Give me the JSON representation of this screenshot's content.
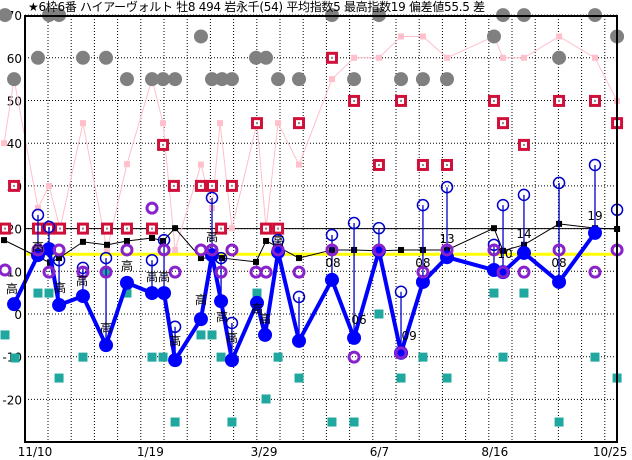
{
  "chart_data": {
    "type": "line",
    "title": "★6枠6番 ハイアーヴォルト 牡8 494 岩永千(54) 平均指数5 最高指数19 偏差値55.5 差",
    "x_unit": "days since 11/10",
    "xlim": [
      -21,
      353
    ],
    "ylim": [
      -30,
      70
    ],
    "grid": true,
    "x_ticks": [
      {
        "label": "11/10",
        "day": 0
      },
      {
        "label": "1/19",
        "day": 70
      },
      {
        "label": "3/29",
        "day": 139
      },
      {
        "label": "6/7",
        "day": 209
      },
      {
        "label": "8/16",
        "day": 279
      },
      {
        "label": "10/25",
        "day": 349
      }
    ],
    "y_ticks": [
      {
        "label": "70",
        "v": 70
      },
      {
        "label": "60",
        "v": 60
      },
      {
        "label": "50",
        "v": 50
      },
      {
        "label": "40",
        "v": 40
      },
      {
        "label": "30",
        "v": 30
      },
      {
        "label": "20",
        "v": 20
      },
      {
        "label": "10",
        "v": 10
      },
      {
        "label": "0",
        "v": 0
      },
      {
        "label": "-10",
        "v": -10
      },
      {
        "label": "-20",
        "v": -20
      }
    ],
    "reference_lines": [
      {
        "v": 20,
        "color": "#000000"
      },
      {
        "v": 14,
        "color": "#ffff00"
      }
    ],
    "colors": {
      "main": "#0000ff",
      "max": "#0000cc",
      "purple": "#8822cc",
      "black": "#000000",
      "red": "#d0103a",
      "pink": "#ffc0cb",
      "gray": "#808080",
      "teal": "#20a8a0"
    },
    "main": [
      {
        "d": -12.7,
        "v": 2.3
      },
      {
        "d": 1.8,
        "v": 13.8,
        "max": 23.2
      },
      {
        "d": 8.5,
        "v": 15.2,
        "max": 20.4
      },
      {
        "d": 14.6,
        "v": 2.1,
        "max": 12.6
      },
      {
        "d": 29.1,
        "v": 4.2,
        "max": 10.8
      },
      {
        "d": 43.1,
        "v": -7.3,
        "max": 13.1
      },
      {
        "d": 55.8,
        "v": 7.3
      },
      {
        "d": 71,
        "v": 4.9,
        "max": 12.6
      },
      {
        "d": 78.3,
        "v": 4.9,
        "max": 17.3
      },
      {
        "d": 85,
        "v": -10.8,
        "max": -3
      },
      {
        "d": 100.7,
        "v": -1.2
      },
      {
        "d": 107.4,
        "v": 13.8,
        "max": 27.2
      },
      {
        "d": 112.9,
        "v": 3.0,
        "max": 13.1
      },
      {
        "d": 119.5,
        "v": -10.8,
        "max": -2.1
      },
      {
        "d": 134.7,
        "v": 2.6
      },
      {
        "d": 139.6,
        "v": -4.9
      },
      {
        "d": 147.5,
        "v": 14.5,
        "max": 17.3
      },
      {
        "d": 160.2,
        "v": -6.3,
        "max": 4
      },
      {
        "d": 180.2,
        "v": 8.0,
        "max": 18.5
      },
      {
        "d": 193.6,
        "v": -5.6,
        "max": 21.3
      },
      {
        "d": 208.7,
        "v": 14.8,
        "max": 20.1
      },
      {
        "d": 222.1,
        "v": -9.1,
        "max": 5.2
      },
      {
        "d": 235.4,
        "v": 7.5,
        "max": 25.5
      },
      {
        "d": 250,
        "v": 13.3,
        "max": 29.7
      },
      {
        "d": 278.5,
        "v": 10.3,
        "max": 16.2
      },
      {
        "d": 284,
        "v": 9.8,
        "max": 25.5
      },
      {
        "d": 296.7,
        "v": 14.3,
        "max": 27.9
      },
      {
        "d": 318,
        "v": 7.5,
        "max": 30.7
      },
      {
        "d": 339.8,
        "v": 19.0,
        "max": 34.9
      }
    ],
    "extra_max": [
      {
        "d": 353.2,
        "v": 24.4,
        "to": 15
      }
    ],
    "purple": [
      [
        -18.2,
        10.3
      ],
      [
        1.8,
        15
      ],
      [
        8.5,
        9.8
      ],
      [
        14.6,
        15
      ],
      [
        29.1,
        9.8
      ],
      [
        43.1,
        9.8
      ],
      [
        55.8,
        15
      ],
      [
        71,
        24.8
      ],
      [
        78.3,
        15
      ],
      [
        85,
        9.8
      ],
      [
        100.7,
        15
      ],
      [
        107.4,
        15
      ],
      [
        112.9,
        9.8
      ],
      [
        119.5,
        15
      ],
      [
        134.1,
        9.8
      ],
      [
        140.2,
        9.8
      ],
      [
        147.5,
        15
      ],
      [
        160.2,
        9.8
      ],
      [
        180.2,
        15
      ],
      [
        193.6,
        -10.1
      ],
      [
        208.7,
        15
      ],
      [
        222.1,
        -9.1
      ],
      [
        235.4,
        9.8
      ],
      [
        250,
        15
      ],
      [
        278.5,
        15
      ],
      [
        284,
        9.8
      ],
      [
        296.7,
        9.8
      ],
      [
        318,
        15
      ],
      [
        339.8,
        9.8
      ],
      [
        353.2,
        15
      ]
    ],
    "black": [
      [
        -18.8,
        17.3
      ],
      [
        9.1,
        12
      ],
      [
        14.6,
        13.1
      ],
      [
        29.1,
        16.9
      ],
      [
        43.7,
        16.2
      ],
      [
        55.8,
        17.1
      ],
      [
        71,
        17.8
      ],
      [
        77.7,
        17.1
      ],
      [
        85,
        20.1
      ],
      [
        100.7,
        13.1
      ],
      [
        107.4,
        13.1
      ],
      [
        113.5,
        13.1
      ],
      [
        134.1,
        12.2
      ],
      [
        140.2,
        17.1
      ],
      [
        147.5,
        15.7
      ],
      [
        160.2,
        13.1
      ],
      [
        180.2,
        15
      ],
      [
        193.6,
        15
      ],
      [
        208.7,
        14.8
      ],
      [
        222.1,
        15
      ],
      [
        235.4,
        15
      ],
      [
        250,
        15
      ],
      [
        278.5,
        20.1
      ],
      [
        284,
        14.8
      ],
      [
        296.7,
        16.2
      ],
      [
        318,
        21.1
      ],
      [
        339.8,
        20.1
      ],
      [
        353.2,
        19.9
      ]
    ],
    "red": [
      [
        -18.2,
        20
      ],
      [
        -12.7,
        30
      ],
      [
        1.8,
        20
      ],
      [
        8.5,
        20
      ],
      [
        15.2,
        20
      ],
      [
        29.1,
        20
      ],
      [
        43.7,
        20
      ],
      [
        55.8,
        20
      ],
      [
        71,
        20
      ],
      [
        77.7,
        39.6
      ],
      [
        84.3,
        30
      ],
      [
        100.7,
        30
      ],
      [
        107.4,
        30
      ],
      [
        112.9,
        20
      ],
      [
        119.5,
        30
      ],
      [
        134.7,
        44.7
      ],
      [
        140.2,
        20
      ],
      [
        147.5,
        20
      ],
      [
        160.2,
        44.7
      ],
      [
        180.2,
        60
      ],
      [
        193.6,
        49.9
      ],
      [
        208.7,
        34.9
      ],
      [
        222.1,
        49.9
      ],
      [
        235.4,
        34.9
      ],
      [
        250,
        34.9
      ],
      [
        278.5,
        49.9
      ],
      [
        284,
        44.7
      ],
      [
        296.7,
        39.6
      ],
      [
        318,
        49.9
      ],
      [
        339.8,
        49.9
      ],
      [
        353.2,
        44.7
      ]
    ],
    "pink": [
      [
        -18.8,
        40
      ],
      [
        -12.7,
        55
      ],
      [
        1.8,
        24.8
      ],
      [
        8.5,
        30
      ],
      [
        15.2,
        20
      ],
      [
        29.1,
        44.7
      ],
      [
        43.7,
        15
      ],
      [
        55.8,
        35.1
      ],
      [
        71,
        55
      ],
      [
        77.7,
        44.7
      ],
      [
        85,
        15
      ],
      [
        100.7,
        35
      ],
      [
        107.4,
        24.8
      ],
      [
        112.3,
        44.7
      ],
      [
        119.5,
        20.1
      ],
      [
        134.7,
        44.7
      ],
      [
        140.2,
        20
      ],
      [
        147.5,
        44.7
      ],
      [
        160.2,
        35
      ],
      [
        180.2,
        55
      ],
      [
        193.6,
        60
      ],
      [
        208.7,
        60
      ],
      [
        222.1,
        65
      ],
      [
        235.4,
        65
      ],
      [
        250,
        60
      ],
      [
        278.5,
        65
      ],
      [
        284,
        60
      ],
      [
        296.7,
        60
      ],
      [
        318,
        65
      ],
      [
        339.8,
        60
      ],
      [
        353.2,
        49.9
      ]
    ],
    "gray": [
      [
        -18.2,
        70
      ],
      [
        -12.7,
        55
      ],
      [
        1.8,
        60
      ],
      [
        8.5,
        70
      ],
      [
        14.6,
        70
      ],
      [
        29.1,
        60
      ],
      [
        43.1,
        60
      ],
      [
        55.8,
        55
      ],
      [
        71,
        55
      ],
      [
        77.7,
        55
      ],
      [
        85,
        55
      ],
      [
        100.7,
        65
      ],
      [
        107.4,
        55
      ],
      [
        113.5,
        55
      ],
      [
        119.5,
        55
      ],
      [
        134.1,
        60
      ],
      [
        140.2,
        60
      ],
      [
        147.5,
        55
      ],
      [
        160.2,
        55
      ],
      [
        180.2,
        70
      ],
      [
        193.6,
        55
      ],
      [
        208.7,
        70
      ],
      [
        222.1,
        55
      ],
      [
        235.4,
        55
      ],
      [
        250,
        55
      ],
      [
        278.5,
        65
      ],
      [
        284,
        70
      ],
      [
        296.7,
        70
      ],
      [
        318,
        60
      ],
      [
        339.8,
        70
      ],
      [
        353.2,
        65
      ]
    ],
    "teal": [
      [
        -18.2,
        -4.9
      ],
      [
        -12.1,
        -10.3
      ],
      [
        1.8,
        4.9
      ],
      [
        8.5,
        4.9
      ],
      [
        14.6,
        -15
      ],
      [
        29.1,
        -10.1
      ],
      [
        43.1,
        9.8
      ],
      [
        55.8,
        4.9
      ],
      [
        71,
        -10.1
      ],
      [
        77.7,
        -10.1
      ],
      [
        85,
        -25.3
      ],
      [
        100.7,
        -4.9
      ],
      [
        107.4,
        -4.9
      ],
      [
        112.9,
        -10.1
      ],
      [
        119.5,
        -25.3
      ],
      [
        134.7,
        4.9
      ],
      [
        140.2,
        -19.9
      ],
      [
        147.5,
        -10.1
      ],
      [
        160.2,
        -15
      ],
      [
        180.2,
        -25.3
      ],
      [
        193.6,
        -25.3
      ],
      [
        208.7,
        0
      ],
      [
        222.1,
        -15
      ],
      [
        235.4,
        -10.1
      ],
      [
        250,
        -15
      ],
      [
        278.5,
        4.9
      ],
      [
        284,
        -10.1
      ],
      [
        296.7,
        4.9
      ],
      [
        318,
        -25.3
      ],
      [
        339.8,
        -10.1
      ],
      [
        353.2,
        -15
      ]
    ],
    "annotations": [
      {
        "text": "高",
        "d": -14,
        "v": 6.1
      },
      {
        "text": "高",
        "d": 1.8,
        "v": 15.9
      },
      {
        "text": "高",
        "d": 15.2,
        "v": 6.3
      },
      {
        "text": "高",
        "d": 28.5,
        "v": 8
      },
      {
        "text": "高",
        "d": 43.1,
        "v": -3
      },
      {
        "text": "高",
        "d": 55.8,
        "v": 11.5
      },
      {
        "text": "高",
        "d": 71,
        "v": 8.9
      },
      {
        "text": "高",
        "d": 78.3,
        "v": 8.9
      },
      {
        "text": "高",
        "d": 85,
        "v": -6.1
      },
      {
        "text": "高",
        "d": 100.7,
        "v": 3.5
      },
      {
        "text": "高",
        "d": 107.4,
        "v": 18.3
      },
      {
        "text": "高",
        "d": 113.5,
        "v": -0.5
      },
      {
        "text": "高",
        "d": 119.5,
        "v": -5.4
      },
      {
        "text": "高",
        "d": 134.7,
        "v": 1.4
      },
      {
        "text": "高",
        "d": 139.6,
        "v": -0.9
      },
      {
        "text": "高",
        "d": 147.5,
        "v": 17.3
      },
      {
        "text": "08",
        "d": 180.8,
        "v": 12.2
      },
      {
        "text": "06",
        "d": 196.6,
        "v": -1.2
      },
      {
        "text": "09",
        "d": 227,
        "v": -4.9
      },
      {
        "text": "08",
        "d": 235.4,
        "v": 12.2
      },
      {
        "text": "13",
        "d": 250,
        "v": 17.8
      },
      {
        "text": "10",
        "d": 285.2,
        "v": 14.3
      },
      {
        "text": "14",
        "d": 296.7,
        "v": 19
      },
      {
        "text": "08",
        "d": 318,
        "v": 12.2
      },
      {
        "text": "19",
        "d": 339.8,
        "v": 23.2
      }
    ]
  }
}
